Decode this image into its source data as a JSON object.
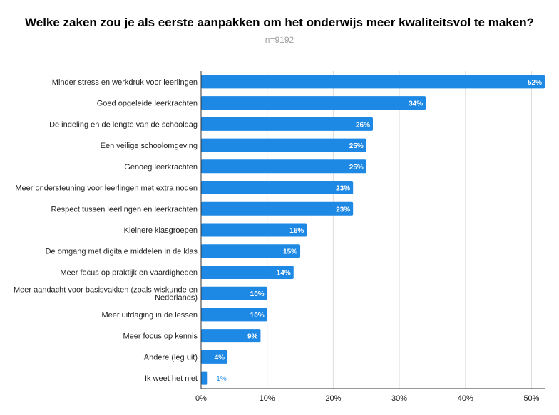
{
  "chart_data": {
    "type": "bar",
    "orientation": "horizontal",
    "title": "Welke zaken zou je als eerste aanpakken om het onderwijs meer kwaliteitsvol te maken?",
    "subtitle": "n=9192",
    "categories": [
      [
        "Minder stress en werkdruk voor leerlingen"
      ],
      [
        "Goed opgeleide leerkrachten"
      ],
      [
        "De indeling en de lengte van de schooldag"
      ],
      [
        "Een veilige schoolomgeving"
      ],
      [
        "Genoeg leerkrachten"
      ],
      [
        "Meer ondersteuning voor leerlingen met extra noden"
      ],
      [
        "Respect tussen leerlingen en leerkrachten"
      ],
      [
        "Kleinere klasgroepen"
      ],
      [
        "De omgang met digitale middelen in de klas"
      ],
      [
        "Meer focus op praktijk en vaardigheden"
      ],
      [
        "Meer aandacht voor basisvakken (zoals wiskunde en",
        "Nederlands)"
      ],
      [
        "Meer uitdaging in de lessen"
      ],
      [
        "Meer focus op kennis"
      ],
      [
        "Andere (leg uit)"
      ],
      [
        "Ik weet het niet"
      ]
    ],
    "values": [
      52,
      34,
      26,
      25,
      25,
      23,
      23,
      16,
      15,
      14,
      10,
      10,
      9,
      4,
      1
    ],
    "value_labels": [
      "52%",
      "34%",
      "26%",
      "25%",
      "25%",
      "23%",
      "23%",
      "16%",
      "15%",
      "14%",
      "10%",
      "10%",
      "9%",
      "4%",
      "1%"
    ],
    "xticks": [
      0,
      10,
      20,
      30,
      40,
      50
    ],
    "xtick_labels": [
      "0%",
      "10%",
      "20%",
      "30%",
      "40%",
      "50%"
    ],
    "xlim": [
      0,
      52
    ],
    "xlabel": "",
    "ylabel": "",
    "grid": true,
    "bar_color": "#1e88e5",
    "grid_color": "#dddddd",
    "axis_color": "#333333"
  }
}
